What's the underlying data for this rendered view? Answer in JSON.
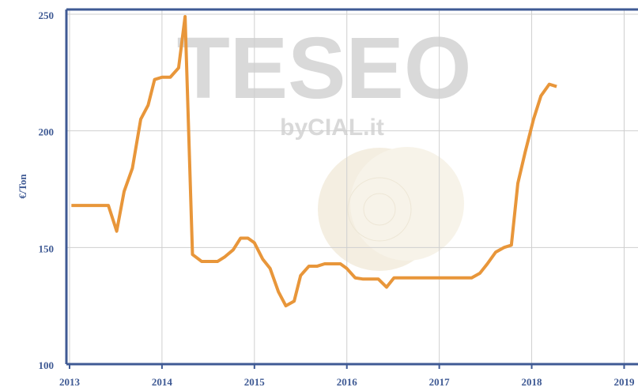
{
  "chart_data": {
    "type": "line",
    "y_label": "€/Ton",
    "watermark": "TESEO",
    "watermark_sub": "byCIAL.it",
    "x": [
      2013.02,
      2013.42,
      2013.51,
      2013.59,
      2013.68,
      2013.77,
      2013.85,
      2013.92,
      2014.0,
      2014.09,
      2014.18,
      2014.25,
      2014.33,
      2014.43,
      2014.51,
      2014.6,
      2014.68,
      2014.77,
      2014.85,
      2014.93,
      2015.0,
      2015.09,
      2015.17,
      2015.26,
      2015.34,
      2015.43,
      2015.5,
      2015.59,
      2015.68,
      2015.76,
      2015.84,
      2015.93,
      2016.0,
      2016.09,
      2016.17,
      2016.34,
      2016.43,
      2016.51,
      2017.35,
      2017.44,
      2017.52,
      2017.61,
      2017.7,
      2017.78,
      2017.85,
      2017.93,
      2018.02,
      2018.1,
      2018.19,
      2018.27
    ],
    "series": [
      {
        "name": "€/Ton",
        "color": "#e8963a",
        "values": [
          168,
          168,
          157,
          174,
          184,
          205,
          211,
          222,
          223,
          223,
          227,
          249,
          147,
          144,
          144,
          144,
          146,
          149,
          154,
          154,
          152,
          145,
          141,
          131,
          125,
          127,
          138,
          142,
          142,
          143,
          143,
          143,
          141,
          137,
          136.5,
          136.5,
          133,
          137,
          137,
          139,
          143,
          148,
          150,
          151,
          177.5,
          191,
          205,
          215,
          220,
          219
        ]
      }
    ],
    "xlim": [
      2012.966,
      2019.15
    ],
    "xticks": [
      2013,
      2014,
      2015,
      2016,
      2017,
      2018,
      2019
    ],
    "ylim": [
      100,
      250
    ],
    "yticks": [
      100,
      150,
      200,
      250
    ],
    "grid": true
  }
}
